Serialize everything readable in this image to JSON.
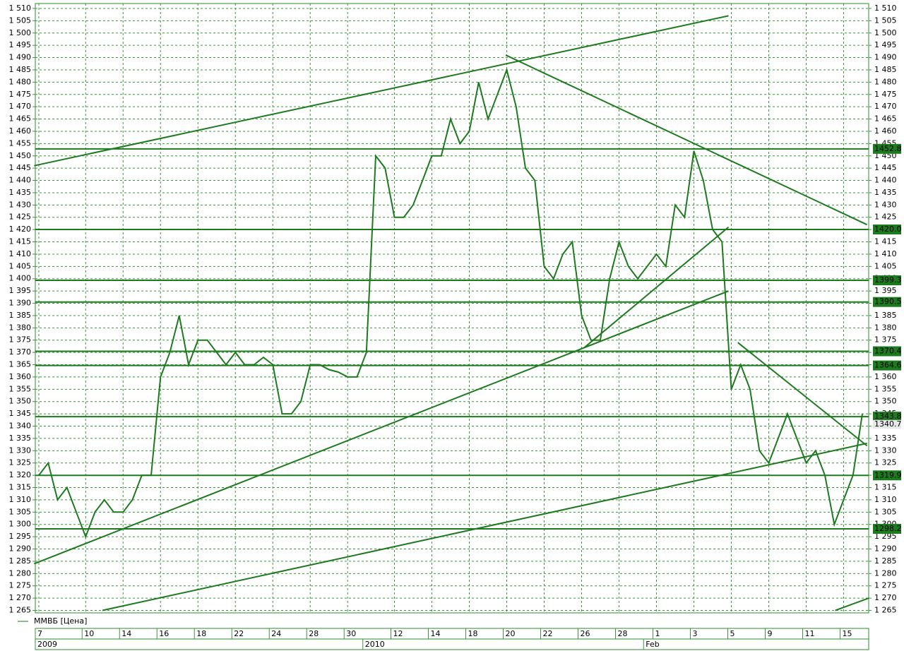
{
  "chart_data": {
    "type": "line",
    "legend": "ММВБ [Цена]",
    "color": "#1e7a1e",
    "grid": true,
    "ylim": [
      1264,
      1512
    ],
    "yticks": [
      {
        "value": 1510,
        "label": "1 510"
      },
      {
        "value": 1505,
        "label": "1 505"
      },
      {
        "value": 1500,
        "label": "1 500"
      },
      {
        "value": 1495,
        "label": "1 495"
      },
      {
        "value": 1490,
        "label": "1 490"
      },
      {
        "value": 1485,
        "label": "1 485"
      },
      {
        "value": 1480,
        "label": "1 480"
      },
      {
        "value": 1475,
        "label": "1 475"
      },
      {
        "value": 1470,
        "label": "1 470"
      },
      {
        "value": 1465,
        "label": "1 465"
      },
      {
        "value": 1460,
        "label": "1 460"
      },
      {
        "value": 1455,
        "label": "1 455"
      },
      {
        "value": 1450,
        "label": "1 450"
      },
      {
        "value": 1445,
        "label": "1 445"
      },
      {
        "value": 1440,
        "label": "1 440"
      },
      {
        "value": 1435,
        "label": "1 435"
      },
      {
        "value": 1430,
        "label": "1 430"
      },
      {
        "value": 1425,
        "label": "1 425"
      },
      {
        "value": 1420,
        "label": "1 420"
      },
      {
        "value": 1415,
        "label": "1 415"
      },
      {
        "value": 1410,
        "label": "1 410"
      },
      {
        "value": 1405,
        "label": "1 405"
      },
      {
        "value": 1400,
        "label": "1 400"
      },
      {
        "value": 1395,
        "label": "1 395"
      },
      {
        "value": 1390,
        "label": "1 390"
      },
      {
        "value": 1385,
        "label": "1 385"
      },
      {
        "value": 1380,
        "label": "1 380"
      },
      {
        "value": 1375,
        "label": "1 375"
      },
      {
        "value": 1370,
        "label": "1 370"
      },
      {
        "value": 1365,
        "label": "1 365"
      },
      {
        "value": 1360,
        "label": "1 360"
      },
      {
        "value": 1355,
        "label": "1 355"
      },
      {
        "value": 1350,
        "label": "1 350"
      },
      {
        "value": 1345,
        "label": "1 345"
      },
      {
        "value": 1340,
        "label": "1 340"
      },
      {
        "value": 1335,
        "label": "1 335"
      },
      {
        "value": 1330,
        "label": "1 330"
      },
      {
        "value": 1325,
        "label": "1 325"
      },
      {
        "value": 1320,
        "label": "1 320"
      },
      {
        "value": 1315,
        "label": "1 315"
      },
      {
        "value": 1310,
        "label": "1 310"
      },
      {
        "value": 1305,
        "label": "1 305"
      },
      {
        "value": 1300,
        "label": "1 300"
      },
      {
        "value": 1295,
        "label": "1 295"
      },
      {
        "value": 1290,
        "label": "1 290"
      },
      {
        "value": 1285,
        "label": "1 285"
      },
      {
        "value": 1280,
        "label": "1 280"
      },
      {
        "value": 1275,
        "label": "1 275"
      },
      {
        "value": 1270,
        "label": "1 270"
      },
      {
        "value": 1265,
        "label": "1 265"
      }
    ],
    "categories": [
      "7",
      null,
      null,
      null,
      null,
      "10",
      null,
      null,
      null,
      "14",
      null,
      null,
      null,
      "16",
      null,
      null,
      null,
      "18",
      null,
      null,
      null,
      "22",
      null,
      null,
      null,
      "24",
      null,
      null,
      null,
      "28",
      null,
      null,
      null,
      "30",
      null,
      null,
      null,
      null,
      "12",
      null,
      null,
      null,
      "14",
      null,
      null,
      null,
      "18",
      null,
      null,
      null,
      "20",
      null,
      null,
      null,
      "22",
      null,
      null,
      null,
      "26",
      null,
      null,
      null,
      "28",
      null,
      null,
      null,
      "1",
      null,
      null,
      null,
      "3",
      null,
      null,
      null,
      "5",
      null,
      null,
      null,
      "9",
      null,
      null,
      null,
      "11",
      null,
      null,
      null,
      "15",
      null,
      null
    ],
    "periods": [
      "2009",
      null,
      null,
      null,
      null,
      null,
      null,
      null,
      null,
      null,
      null,
      null,
      null,
      null,
      null,
      null,
      null,
      null,
      null,
      null,
      null,
      null,
      null,
      null,
      null,
      null,
      null,
      null,
      null,
      null,
      null,
      null,
      null,
      null,
      null,
      "2010",
      null,
      null,
      null,
      null,
      null,
      null,
      null,
      null,
      null,
      null,
      null,
      null,
      null,
      null,
      null,
      null,
      null,
      null,
      null,
      null,
      null,
      null,
      null,
      null,
      null,
      null,
      null,
      null,
      null,
      "Feb",
      null,
      null,
      null,
      null,
      null,
      null,
      null,
      null,
      null,
      null,
      null,
      null,
      null,
      null,
      null,
      null,
      null,
      null,
      null,
      null,
      null,
      null,
      null
    ],
    "values": [
      1320,
      1325,
      1310,
      1315,
      1305,
      1295,
      1305,
      1310,
      1305,
      1305,
      1310,
      1320,
      1320,
      1360,
      1370,
      1385,
      1365,
      1375,
      1375,
      1370,
      1365,
      1370,
      1365,
      1365,
      1368,
      1365,
      1345,
      1345,
      1350,
      1365,
      1365,
      1363,
      1362,
      1360,
      1360,
      1370,
      1450,
      1445,
      1425,
      1425,
      1430,
      1440,
      1450,
      1450,
      1465,
      1455,
      1460,
      1480,
      1465,
      1475,
      1485,
      1470,
      1445,
      1440,
      1405,
      1400,
      1410,
      1415,
      1385,
      1375,
      1375,
      1400,
      1415,
      1405,
      1400,
      1405,
      1410,
      1405,
      1430,
      1425,
      1452,
      1440,
      1420,
      1415,
      1355,
      1365,
      1355,
      1330,
      1325,
      1335,
      1345,
      1335,
      1325,
      1330,
      1320,
      1300,
      1310,
      1320,
      1345
    ],
    "levels": [
      1452.855,
      1420.04,
      1399.35,
      1390.53,
      1370.47,
      1364.69,
      1343.87,
      1319.96,
      {
        "value": 1298.2,
        "label": "1298.20"
      }
    ],
    "last_price": 1340.77,
    "trendlines": [
      {
        "x": [
          -0.5,
          73.7
        ],
        "y": [
          1446,
          1507
        ]
      },
      {
        "x": [
          49.9,
          88.5
        ],
        "y": [
          1491,
          1422
        ]
      },
      {
        "x": [
          -0.5,
          73.7
        ],
        "y": [
          1284,
          1395
        ]
      },
      {
        "x": [
          6.8,
          88.5
        ],
        "y": [
          1265,
          1333
        ]
      },
      {
        "x": [
          58.3,
          73.7
        ],
        "y": [
          1372,
          1421
        ]
      },
      {
        "x": [
          74.7,
          88.5
        ],
        "y": [
          1374,
          1332
        ]
      },
      {
        "x": [
          85.1,
          88.7
        ],
        "y": [
          1265,
          1270
        ]
      }
    ]
  }
}
